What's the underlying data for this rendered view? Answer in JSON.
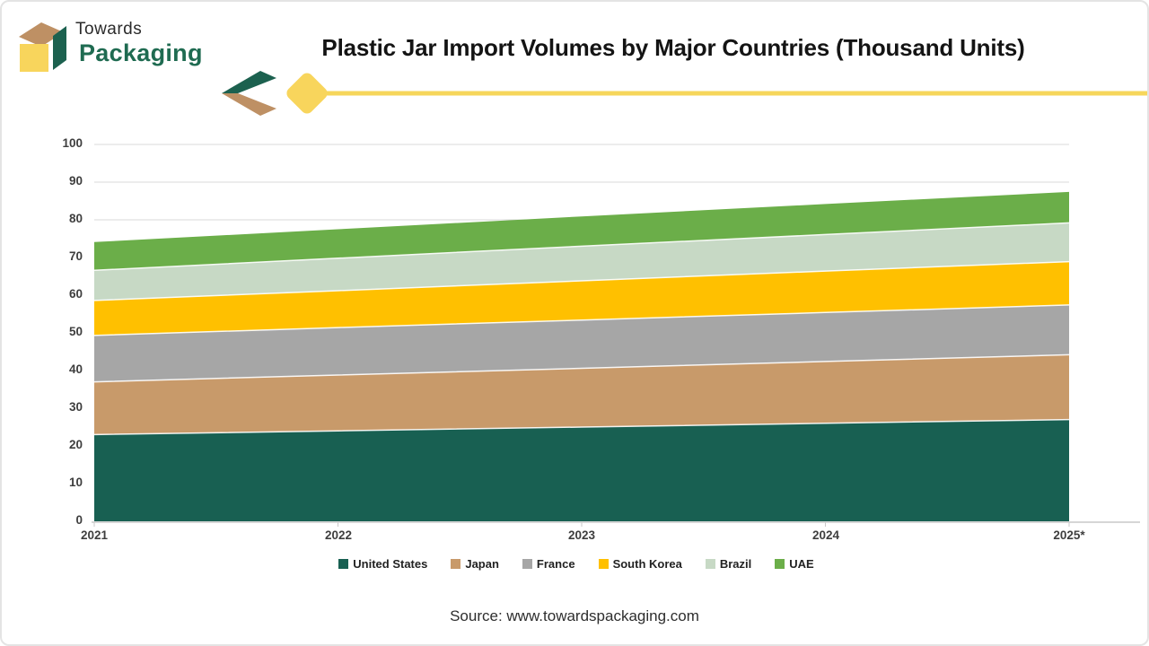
{
  "brand": {
    "name_line1": "Towards",
    "name_line2": "Packaging"
  },
  "title": "Plastic Jar Import Volumes by Major Countries (Thousand Units)",
  "footer": {
    "source": "Source: www.towardspackaging.com"
  },
  "colors": {
    "accent_line": "#F6D65B",
    "brand_green": "#1C614F",
    "brand_tan": "#BE9064",
    "brand_yellow": "#F8D55C",
    "wordmark_green": "#1F6B51",
    "grid": "#D9D9D9",
    "axis": "#C9C9C9",
    "tick_label": "#3E3E3E"
  },
  "chart_data": {
    "type": "area",
    "stacked": true,
    "title": "Plastic Jar Import Volumes by Major Countries (Thousand Units)",
    "x": [
      "2021",
      "2022",
      "2023",
      "2024",
      "2025*"
    ],
    "series": [
      {
        "name": "United States",
        "color": "#186052",
        "values": [
          23,
          24,
          25,
          26,
          27
        ]
      },
      {
        "name": "Japan",
        "color": "#C89A6A",
        "values": [
          14,
          14.8,
          15.6,
          16.4,
          17.2
        ]
      },
      {
        "name": "France",
        "color": "#A6A6A6",
        "values": [
          12.3,
          12.6,
          12.8,
          13,
          13.2
        ]
      },
      {
        "name": "South Korea",
        "color": "#FFC000",
        "values": [
          9.3,
          9.8,
          10.4,
          11,
          11.5
        ]
      },
      {
        "name": "Brazil",
        "color": "#C7D9C5",
        "values": [
          8,
          8.6,
          9.2,
          9.7,
          10.3
        ]
      },
      {
        "name": "UAE",
        "color": "#6BAE49",
        "values": [
          7.5,
          7.7,
          7.9,
          8.1,
          8.2
        ]
      }
    ],
    "ylim": [
      0,
      100
    ],
    "ytick_step": 10,
    "grid": true,
    "legend_position": "bottom",
    "xlabel": "",
    "ylabel": ""
  }
}
